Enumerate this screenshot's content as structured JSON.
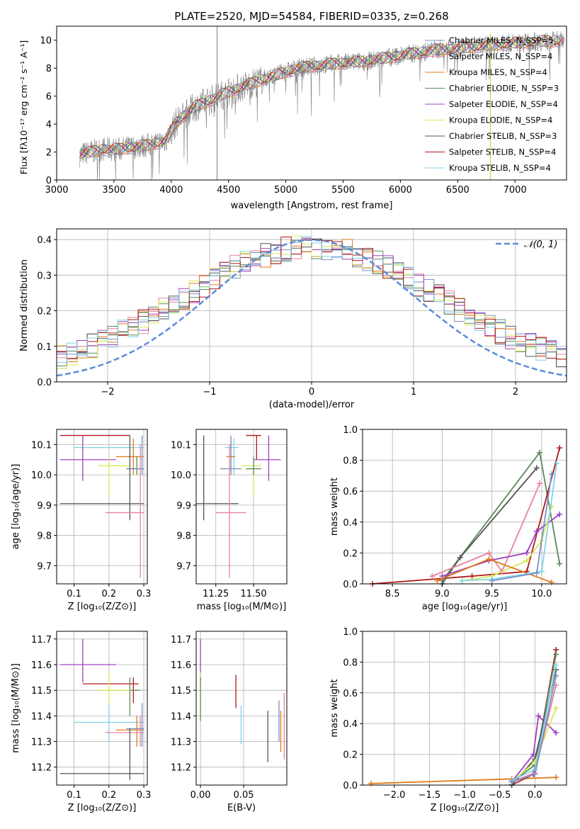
{
  "colors": {
    "c_miles": "#7b8fc4",
    "s_miles": "#e8839a",
    "k_miles": "#e07b1a",
    "c_elodie": "#5b8b5b",
    "s_elodie": "#a040c0",
    "k_elodie": "#d8e85a",
    "c_stelib": "#555555",
    "s_stelib": "#b01818",
    "k_stelib": "#7fd3e8",
    "normal": "#5b8bd8"
  },
  "chart_data": [
    {
      "id": "spectrum",
      "type": "line",
      "title": "PLATE=2520, MJD=54584, FIBERID=0335, z=0.268",
      "xlabel": "wavelength [Angstrom, rest frame]",
      "ylabel": "Flux [fλ10⁻¹⁷ erg cm⁻² s⁻¹ A⁻¹]",
      "xlim": [
        3000,
        7450
      ],
      "ylim": [
        0,
        11
      ],
      "xticks": [
        "3000",
        "3500",
        "4000",
        "4500",
        "5000",
        "5500",
        "6000",
        "6500",
        "7000"
      ],
      "yticks": [
        "0",
        "2",
        "4",
        "6",
        "8",
        "10"
      ],
      "legend": [
        {
          "label": "Chabrier MILES, N_SSP=5",
          "color": "c_miles"
        },
        {
          "label": "Salpeter MILES, N_SSP=4",
          "color": "s_miles"
        },
        {
          "label": "Kroupa MILES, N_SSP=4",
          "color": "k_miles"
        },
        {
          "label": "Chabrier ELODIE, N_SSP=3",
          "color": "c_elodie"
        },
        {
          "label": "Salpeter ELODIE, N_SSP=4",
          "color": "s_elodie"
        },
        {
          "label": "Kroupa ELODIE, N_SSP=4",
          "color": "k_elodie"
        },
        {
          "label": "Chabrier STELIB, N_SSP=3",
          "color": "c_stelib"
        },
        {
          "label": "Salpeter STELIB, N_SSP=4",
          "color": "s_stelib"
        },
        {
          "label": "Kroupa STELIB, N_SSP=4",
          "color": "k_stelib"
        }
      ],
      "continuum": [
        [
          3200,
          1.8
        ],
        [
          3400,
          2.2
        ],
        [
          3550,
          2.2
        ],
        [
          3800,
          2.5
        ],
        [
          3950,
          2.8
        ],
        [
          4050,
          4.2
        ],
        [
          4200,
          5.2
        ],
        [
          4500,
          6.3
        ],
        [
          4800,
          7.2
        ],
        [
          5100,
          8.0
        ],
        [
          5400,
          8.3
        ],
        [
          5700,
          8.5
        ],
        [
          6000,
          8.9
        ],
        [
          6300,
          9.3
        ],
        [
          6600,
          9.5
        ],
        [
          7000,
          9.8
        ],
        [
          7430,
          10.0
        ]
      ]
    },
    {
      "id": "residuals",
      "type": "line",
      "xlabel": "(data-model)/error",
      "ylabel": "Normed distribution",
      "xlim": [
        -2.5,
        2.5
      ],
      "ylim": [
        0,
        0.43
      ],
      "xticks": [
        "−2",
        "−1",
        "0",
        "1",
        "2"
      ],
      "xtick_values": [
        -2,
        -1,
        0,
        1,
        2
      ],
      "yticks": [
        "0.0",
        "0.1",
        "0.2",
        "0.3",
        "0.4"
      ],
      "ytick_values": [
        0,
        0.1,
        0.2,
        0.3,
        0.4
      ],
      "legend": "𝒩(0, 1)"
    },
    {
      "id": "age_vs_Z",
      "type": "scatter",
      "xlabel": "Z [log₁₀(Z/Z⊙)]",
      "ylabel": "age  [log₁₀(age/yr)]",
      "xlim": [
        0.05,
        0.31
      ],
      "ylim": [
        9.64,
        10.15
      ],
      "xticks": [
        "0.1",
        "0.2",
        "0.3"
      ],
      "xtick_values": [
        0.1,
        0.2,
        0.3
      ],
      "yticks": [
        "9.7",
        "9.8",
        "9.9",
        "10.0",
        "10.1"
      ],
      "ytick_values": [
        9.7,
        9.8,
        9.9,
        10.0,
        10.1
      ],
      "points": [
        {
          "s": "s_stelib",
          "x": 0.125,
          "y": 10.13,
          "xlo": 0.06,
          "xhi": 0.26,
          "ylo": 10.13,
          "yhi": 10.13
        },
        {
          "s": "k_stelib",
          "x": 0.2,
          "y": 10.09,
          "xlo": 0.1,
          "xhi": 0.3,
          "ylo": 10.09,
          "yhi": 10.09
        },
        {
          "s": "s_elodie",
          "x": 0.125,
          "y": 10.05,
          "xlo": 0.06,
          "xhi": 0.22,
          "ylo": 9.98,
          "yhi": 10.13
        },
        {
          "s": "k_miles",
          "x": 0.27,
          "y": 10.06,
          "xlo": 0.22,
          "xhi": 0.3,
          "ylo": 10.0,
          "yhi": 10.12
        },
        {
          "s": "k_elodie",
          "x": 0.2,
          "y": 10.03,
          "xlo": 0.17,
          "xhi": 0.26,
          "ylo": 9.93,
          "yhi": 10.06
        },
        {
          "s": "c_elodie",
          "x": 0.28,
          "y": 10.02,
          "xlo": 0.25,
          "xhi": 0.3,
          "ylo": 10.0,
          "yhi": 10.06
        },
        {
          "s": "c_miles",
          "x": 0.295,
          "y": 10.02,
          "xlo": 0.25,
          "xhi": 0.3,
          "ylo": 10.0,
          "yhi": 10.13
        },
        {
          "s": "c_stelib",
          "x": 0.26,
          "y": 9.905,
          "xlo": 0.06,
          "xhi": 0.3,
          "ylo": 9.85,
          "yhi": 10.13
        },
        {
          "s": "s_miles",
          "x": 0.29,
          "y": 9.875,
          "xlo": 0.19,
          "xhi": 0.3,
          "ylo": 9.66,
          "yhi": 10.1
        }
      ]
    },
    {
      "id": "age_vs_mass",
      "type": "scatter",
      "xlabel": "mass [log₁₀(M/M⊙)]",
      "ylabel": "",
      "xlim": [
        11.12,
        11.72
      ],
      "ylim": [
        9.64,
        10.15
      ],
      "xticks": [
        "11.25",
        "11.50"
      ],
      "xtick_values": [
        11.25,
        11.5
      ],
      "yticks": [
        "9.7",
        "9.8",
        "9.9",
        "10.0",
        "10.1"
      ],
      "ytick_values": [
        9.7,
        9.8,
        9.9,
        10.0,
        10.1
      ],
      "points": [
        {
          "s": "c_stelib",
          "x": 11.17,
          "y": 9.905,
          "xlo": 11.12,
          "xhi": 11.4,
          "ylo": 9.85,
          "yhi": 10.13
        },
        {
          "s": "s_stelib",
          "x": 11.52,
          "y": 10.13,
          "xlo": 11.45,
          "xhi": 11.55,
          "ylo": 10.05,
          "yhi": 10.13
        },
        {
          "s": "k_stelib",
          "x": 11.37,
          "y": 10.09,
          "xlo": 11.31,
          "xhi": 11.4,
          "ylo": 10.0,
          "yhi": 10.12
        },
        {
          "s": "s_elodie",
          "x": 11.6,
          "y": 10.05,
          "xlo": 11.5,
          "xhi": 11.68,
          "ylo": 9.98,
          "yhi": 10.13
        },
        {
          "s": "k_miles",
          "x": 11.35,
          "y": 10.06,
          "xlo": 11.32,
          "xhi": 11.38,
          "ylo": 10.0,
          "yhi": 10.12
        },
        {
          "s": "k_elodie",
          "x": 11.5,
          "y": 10.03,
          "xlo": 11.42,
          "xhi": 11.55,
          "ylo": 9.93,
          "yhi": 10.06
        },
        {
          "s": "c_elodie",
          "x": 11.5,
          "y": 10.02,
          "xlo": 11.45,
          "xhi": 11.55,
          "ylo": 10.0,
          "yhi": 10.06
        },
        {
          "s": "c_miles",
          "x": 11.35,
          "y": 10.02,
          "xlo": 11.28,
          "xhi": 11.42,
          "ylo": 10.0,
          "yhi": 10.13
        },
        {
          "s": "s_miles",
          "x": 11.34,
          "y": 9.875,
          "xlo": 11.25,
          "xhi": 11.45,
          "ylo": 9.66,
          "yhi": 10.1
        }
      ]
    },
    {
      "id": "weight_vs_age",
      "type": "line",
      "xlabel": "age  [log₁₀(age/yr)]",
      "ylabel": "mass weight",
      "xlim": [
        8.2,
        10.25
      ],
      "ylim": [
        0,
        1
      ],
      "xticks": [
        "8.5",
        "9.0",
        "9.5",
        "10.0"
      ],
      "xtick_values": [
        8.5,
        9.0,
        9.5,
        10.0
      ],
      "yticks": [
        "0.0",
        "0.2",
        "0.4",
        "0.6",
        "0.8",
        "1.0"
      ],
      "ytick_values": [
        0,
        0.2,
        0.4,
        0.6,
        0.8,
        1.0
      ],
      "series": [
        {
          "s": "c_elodie",
          "x": [
            9.0,
            9.98,
            10.18
          ],
          "y": [
            0.02,
            0.85,
            0.13
          ]
        },
        {
          "s": "s_stelib",
          "x": [
            8.3,
            9.3,
            9.85,
            10.18
          ],
          "y": [
            0.0,
            0.05,
            0.08,
            0.88
          ]
        },
        {
          "s": "c_stelib",
          "x": [
            9.0,
            9.18,
            9.95
          ],
          "y": [
            0.0,
            0.17,
            0.75
          ]
        },
        {
          "s": "s_miles",
          "x": [
            8.9,
            9.47,
            9.6,
            9.98
          ],
          "y": [
            0.05,
            0.2,
            0.08,
            0.65
          ]
        },
        {
          "s": "s_elodie",
          "x": [
            9.0,
            9.47,
            9.85,
            9.95,
            10.18
          ],
          "y": [
            0.05,
            0.15,
            0.2,
            0.34,
            0.45
          ]
        },
        {
          "s": "k_elodie",
          "x": [
            9.2,
            9.5,
            9.85,
            10.0,
            10.1
          ],
          "y": [
            0.02,
            0.05,
            0.15,
            0.28,
            0.5
          ]
        },
        {
          "s": "k_miles",
          "x": [
            8.95,
            9.47,
            10.1
          ],
          "y": [
            0.02,
            0.16,
            0.01
          ]
        },
        {
          "s": "k_stelib",
          "x": [
            9.2,
            9.5,
            10.0,
            10.15
          ],
          "y": [
            0.02,
            0.03,
            0.08,
            0.78
          ]
        },
        {
          "s": "c_miles",
          "x": [
            9.5,
            9.95,
            10.1
          ],
          "y": [
            0.02,
            0.07,
            0.71
          ]
        }
      ]
    },
    {
      "id": "mass_vs_Z",
      "type": "scatter",
      "xlabel": "Z [log₁₀(Z/Z⊙)]",
      "ylabel": "mass [log₁₀(M/M⊙)]",
      "xlim": [
        0.05,
        0.31
      ],
      "ylim": [
        11.13,
        11.73
      ],
      "xticks": [
        "0.1",
        "0.2",
        "0.3"
      ],
      "xtick_values": [
        0.1,
        0.2,
        0.3
      ],
      "yticks": [
        "11.2",
        "11.3",
        "11.4",
        "11.5",
        "11.6",
        "11.7"
      ],
      "ytick_values": [
        11.2,
        11.3,
        11.4,
        11.5,
        11.6,
        11.7
      ],
      "points": [
        {
          "s": "s_elodie",
          "x": 0.125,
          "y": 11.6,
          "xlo": 0.06,
          "xhi": 0.22,
          "ylo": 11.53,
          "yhi": 11.7
        },
        {
          "s": "s_stelib",
          "x": 0.27,
          "y": 11.525,
          "xlo": 0.125,
          "xhi": 0.285,
          "ylo": 11.45,
          "yhi": 11.55
        },
        {
          "s": "c_elodie",
          "x": 0.26,
          "y": 11.5,
          "xlo": 0.17,
          "xhi": 0.29,
          "ylo": 11.4,
          "yhi": 11.55
        },
        {
          "s": "k_elodie",
          "x": 0.2,
          "y": 11.5,
          "xlo": 0.17,
          "xhi": 0.26,
          "ylo": 11.4,
          "yhi": 11.57
        },
        {
          "s": "k_stelib",
          "x": 0.2,
          "y": 11.375,
          "xlo": 0.1,
          "xhi": 0.3,
          "ylo": 11.3,
          "yhi": 11.45
        },
        {
          "s": "k_miles",
          "x": 0.28,
          "y": 11.345,
          "xlo": 0.22,
          "xhi": 0.3,
          "ylo": 11.28,
          "yhi": 11.4
        },
        {
          "s": "s_miles",
          "x": 0.29,
          "y": 11.335,
          "xlo": 0.19,
          "xhi": 0.3,
          "ylo": 11.28,
          "yhi": 11.4
        },
        {
          "s": "c_miles",
          "x": 0.295,
          "y": 11.35,
          "xlo": 0.25,
          "xhi": 0.3,
          "ylo": 11.28,
          "yhi": 11.45
        },
        {
          "s": "c_stelib",
          "x": 0.26,
          "y": 11.175,
          "xlo": 0.06,
          "xhi": 0.3,
          "ylo": 11.15,
          "yhi": 11.35
        }
      ]
    },
    {
      "id": "mass_vs_ebv",
      "type": "scatter",
      "xlabel": "E(B-V)",
      "ylabel": "",
      "xlim": [
        -0.005,
        0.1
      ],
      "ylim": [
        11.13,
        11.73
      ],
      "xticks": [
        "0.00",
        "0.05"
      ],
      "xtick_values": [
        0,
        0.05
      ],
      "yticks": [
        "11.2",
        "11.3",
        "11.4",
        "11.5",
        "11.6",
        "11.7"
      ],
      "ytick_values": [
        11.2,
        11.3,
        11.4,
        11.5,
        11.6,
        11.7
      ],
      "points": [
        {
          "s": "s_elodie",
          "x": 0.0,
          "y": 11.6,
          "xlo": 0,
          "xhi": 0,
          "ylo": 11.53,
          "yhi": 11.7
        },
        {
          "s": "k_elodie",
          "x": 0.0,
          "y": 11.5,
          "xlo": 0,
          "xhi": 0,
          "ylo": 11.4,
          "yhi": 11.57
        },
        {
          "s": "c_elodie",
          "x": 0.0,
          "y": 11.47,
          "xlo": 0,
          "xhi": 0,
          "ylo": 11.38,
          "yhi": 11.55
        },
        {
          "s": "s_stelib",
          "x": 0.041,
          "y": 11.5,
          "xlo": 0.041,
          "xhi": 0.041,
          "ylo": 11.43,
          "yhi": 11.56
        },
        {
          "s": "k_stelib",
          "x": 0.047,
          "y": 11.37,
          "xlo": 0.047,
          "xhi": 0.047,
          "ylo": 11.29,
          "yhi": 11.44
        },
        {
          "s": "c_stelib",
          "x": 0.078,
          "y": 11.33,
          "xlo": 0.078,
          "xhi": 0.078,
          "ylo": 11.22,
          "yhi": 11.42
        },
        {
          "s": "c_miles",
          "x": 0.091,
          "y": 11.38,
          "xlo": 0.091,
          "xhi": 0.091,
          "ylo": 11.3,
          "yhi": 11.46
        },
        {
          "s": "k_miles",
          "x": 0.093,
          "y": 11.34,
          "xlo": 0.093,
          "xhi": 0.093,
          "ylo": 11.26,
          "yhi": 11.42
        },
        {
          "s": "s_miles",
          "x": 0.097,
          "y": 11.37,
          "xlo": 0.097,
          "xhi": 0.097,
          "ylo": 11.23,
          "yhi": 11.49
        }
      ]
    },
    {
      "id": "weight_vs_Z",
      "type": "line",
      "xlabel": "Z [log₁₀(Z/Z⊙)]",
      "ylabel": "mass weight",
      "xlim": [
        -2.45,
        0.45
      ],
      "ylim": [
        0,
        1
      ],
      "xticks": [
        "−2.0",
        "−1.5",
        "−1.0",
        "−0.5",
        "0.0"
      ],
      "xtick_values": [
        -2,
        -1.5,
        -1,
        -0.5,
        0
      ],
      "yticks": [
        "0.0",
        "0.2",
        "0.4",
        "0.6",
        "0.8",
        "1.0"
      ],
      "ytick_values": [
        0,
        0.2,
        0.4,
        0.6,
        0.8,
        1.0
      ],
      "series": [
        {
          "s": "k_miles",
          "x": [
            -2.33,
            -0.33,
            0.3
          ],
          "y": [
            0.01,
            0.04,
            0.05
          ]
        },
        {
          "s": "s_elodie",
          "x": [
            -0.33,
            -0.02,
            0.05,
            0.3
          ],
          "y": [
            0.02,
            0.2,
            0.45,
            0.34
          ]
        },
        {
          "s": "s_stelib",
          "x": [
            -0.33,
            -0.02,
            0.3
          ],
          "y": [
            0.0,
            0.07,
            0.88
          ]
        },
        {
          "s": "c_elodie",
          "x": [
            -0.33,
            0.0,
            0.3
          ],
          "y": [
            0.02,
            0.13,
            0.85
          ]
        },
        {
          "s": "c_stelib",
          "x": [
            -0.33,
            0.0,
            0.3
          ],
          "y": [
            0.0,
            0.17,
            0.75
          ]
        },
        {
          "s": "k_elodie",
          "x": [
            -0.33,
            0.0,
            0.3
          ],
          "y": [
            0.02,
            0.15,
            0.5
          ]
        },
        {
          "s": "s_miles",
          "x": [
            -0.33,
            0.0,
            0.3
          ],
          "y": [
            0.02,
            0.08,
            0.65
          ]
        },
        {
          "s": "k_stelib",
          "x": [
            -0.33,
            0.0,
            0.3
          ],
          "y": [
            0.03,
            0.1,
            0.78
          ]
        },
        {
          "s": "c_miles",
          "x": [
            -0.33,
            0.0,
            0.3
          ],
          "y": [
            0.02,
            0.07,
            0.71
          ]
        }
      ]
    }
  ]
}
